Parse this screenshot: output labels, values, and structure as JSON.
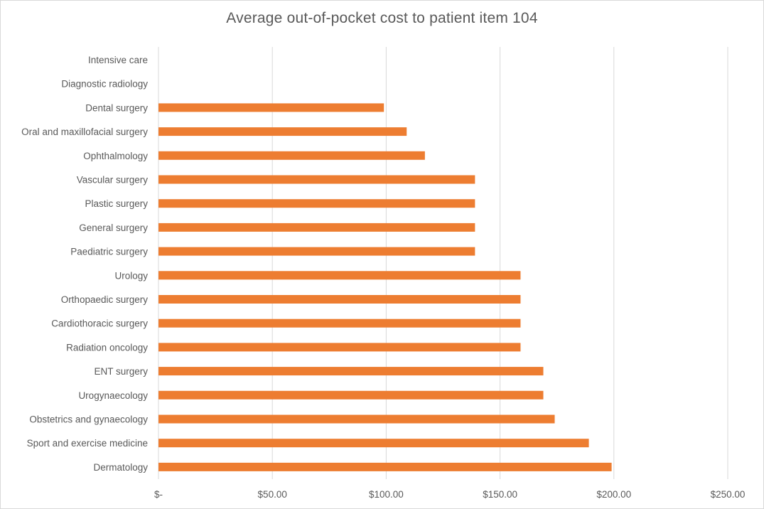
{
  "chart_data": {
    "type": "bar",
    "orientation": "horizontal",
    "title": "Average out-of-pocket cost to patient item 104",
    "xlabel": "",
    "ylabel": "",
    "xlim": [
      0,
      250
    ],
    "x_ticks": [
      0,
      50,
      100,
      150,
      200,
      250
    ],
    "x_tick_labels": [
      "$-",
      "$50.00",
      "$100.00",
      "$150.00",
      "$200.00",
      "$250.00"
    ],
    "grid": "vertical",
    "legend": "none",
    "bar_color": "#ED7D31",
    "grid_color": "#d9d9d9",
    "categories": [
      "Intensive care",
      "Diagnostic radiology",
      "Dental surgery",
      "Oral and maxillofacial surgery",
      "Ophthalmology",
      "Vascular surgery",
      "Plastic surgery",
      "General surgery",
      "Paediatric surgery",
      "Urology",
      "Orthopaedic surgery",
      "Cardiothoracic surgery",
      "Radiation oncology",
      "ENT surgery",
      "Urogynaecology",
      "Obstetrics and gynaecology",
      "Sport and exercise medicine",
      "Dermatology"
    ],
    "values": [
      0,
      0,
      99,
      109,
      117,
      139,
      139,
      139,
      139,
      159,
      159,
      159,
      159,
      169,
      169,
      174,
      189,
      199
    ]
  }
}
